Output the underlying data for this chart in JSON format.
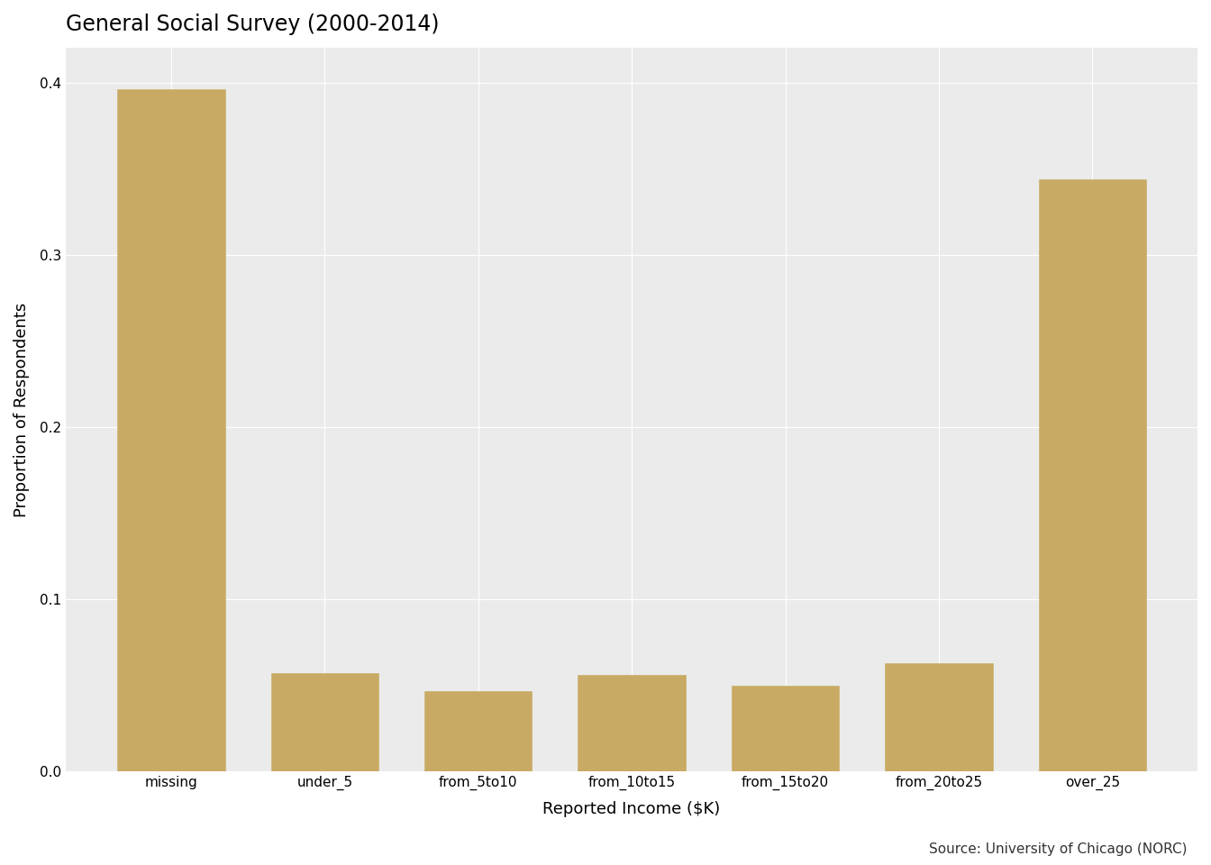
{
  "title": "General Social Survey (2000-2014)",
  "xlabel": "Reported Income ($K)",
  "ylabel": "Proportion of Respondents",
  "categories": [
    "missing",
    "under_5",
    "from_5to10",
    "from_10to15",
    "from_15to20",
    "from_20to25",
    "over_25"
  ],
  "values": [
    0.396,
    0.057,
    0.047,
    0.056,
    0.05,
    0.063,
    0.344
  ],
  "bar_color": "#C8AA64",
  "bar_edge_color": "#000000",
  "bar_edge_width": 0.4,
  "ylim": [
    0,
    0.42
  ],
  "yticks": [
    0.0,
    0.1,
    0.2,
    0.3,
    0.4
  ],
  "figure_background_color": "#FFFFFF",
  "panel_background_color": "#EBEBEB",
  "grid_color": "#FFFFFF",
  "source_text": "Source: University of Chicago (NORC)",
  "title_fontsize": 17,
  "axis_label_fontsize": 13,
  "tick_fontsize": 11,
  "source_fontsize": 11
}
